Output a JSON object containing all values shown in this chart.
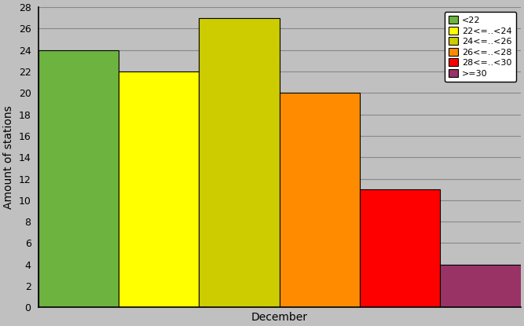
{
  "xlabel": "December",
  "ylabel": "Amount of stations",
  "ylim": [
    0,
    28
  ],
  "yticks": [
    0,
    2,
    4,
    6,
    8,
    10,
    12,
    14,
    16,
    18,
    20,
    22,
    24,
    26,
    28
  ],
  "categories": [
    "<22",
    "22<=..<24",
    "24<=..<26",
    "26<=..<28",
    "28<=..<30",
    ">=30"
  ],
  "values": [
    24,
    22,
    27,
    20,
    11,
    4
  ],
  "colors": [
    "#6db33f",
    "#ffff00",
    "#cccc00",
    "#ff8c00",
    "#ff0000",
    "#993366"
  ],
  "background_color": "#c0c0c0",
  "plot_bg_color": "#c0c0c0",
  "grid_color": "#a0a0a0",
  "bar_edge_color": "#000000",
  "legend_labels": [
    "<22",
    "22<=..<24",
    "24<=..<26",
    "26<=..<28",
    "28<=..<30",
    ">=30"
  ],
  "figsize": [
    6.67,
    4.15
  ],
  "dpi": 100
}
